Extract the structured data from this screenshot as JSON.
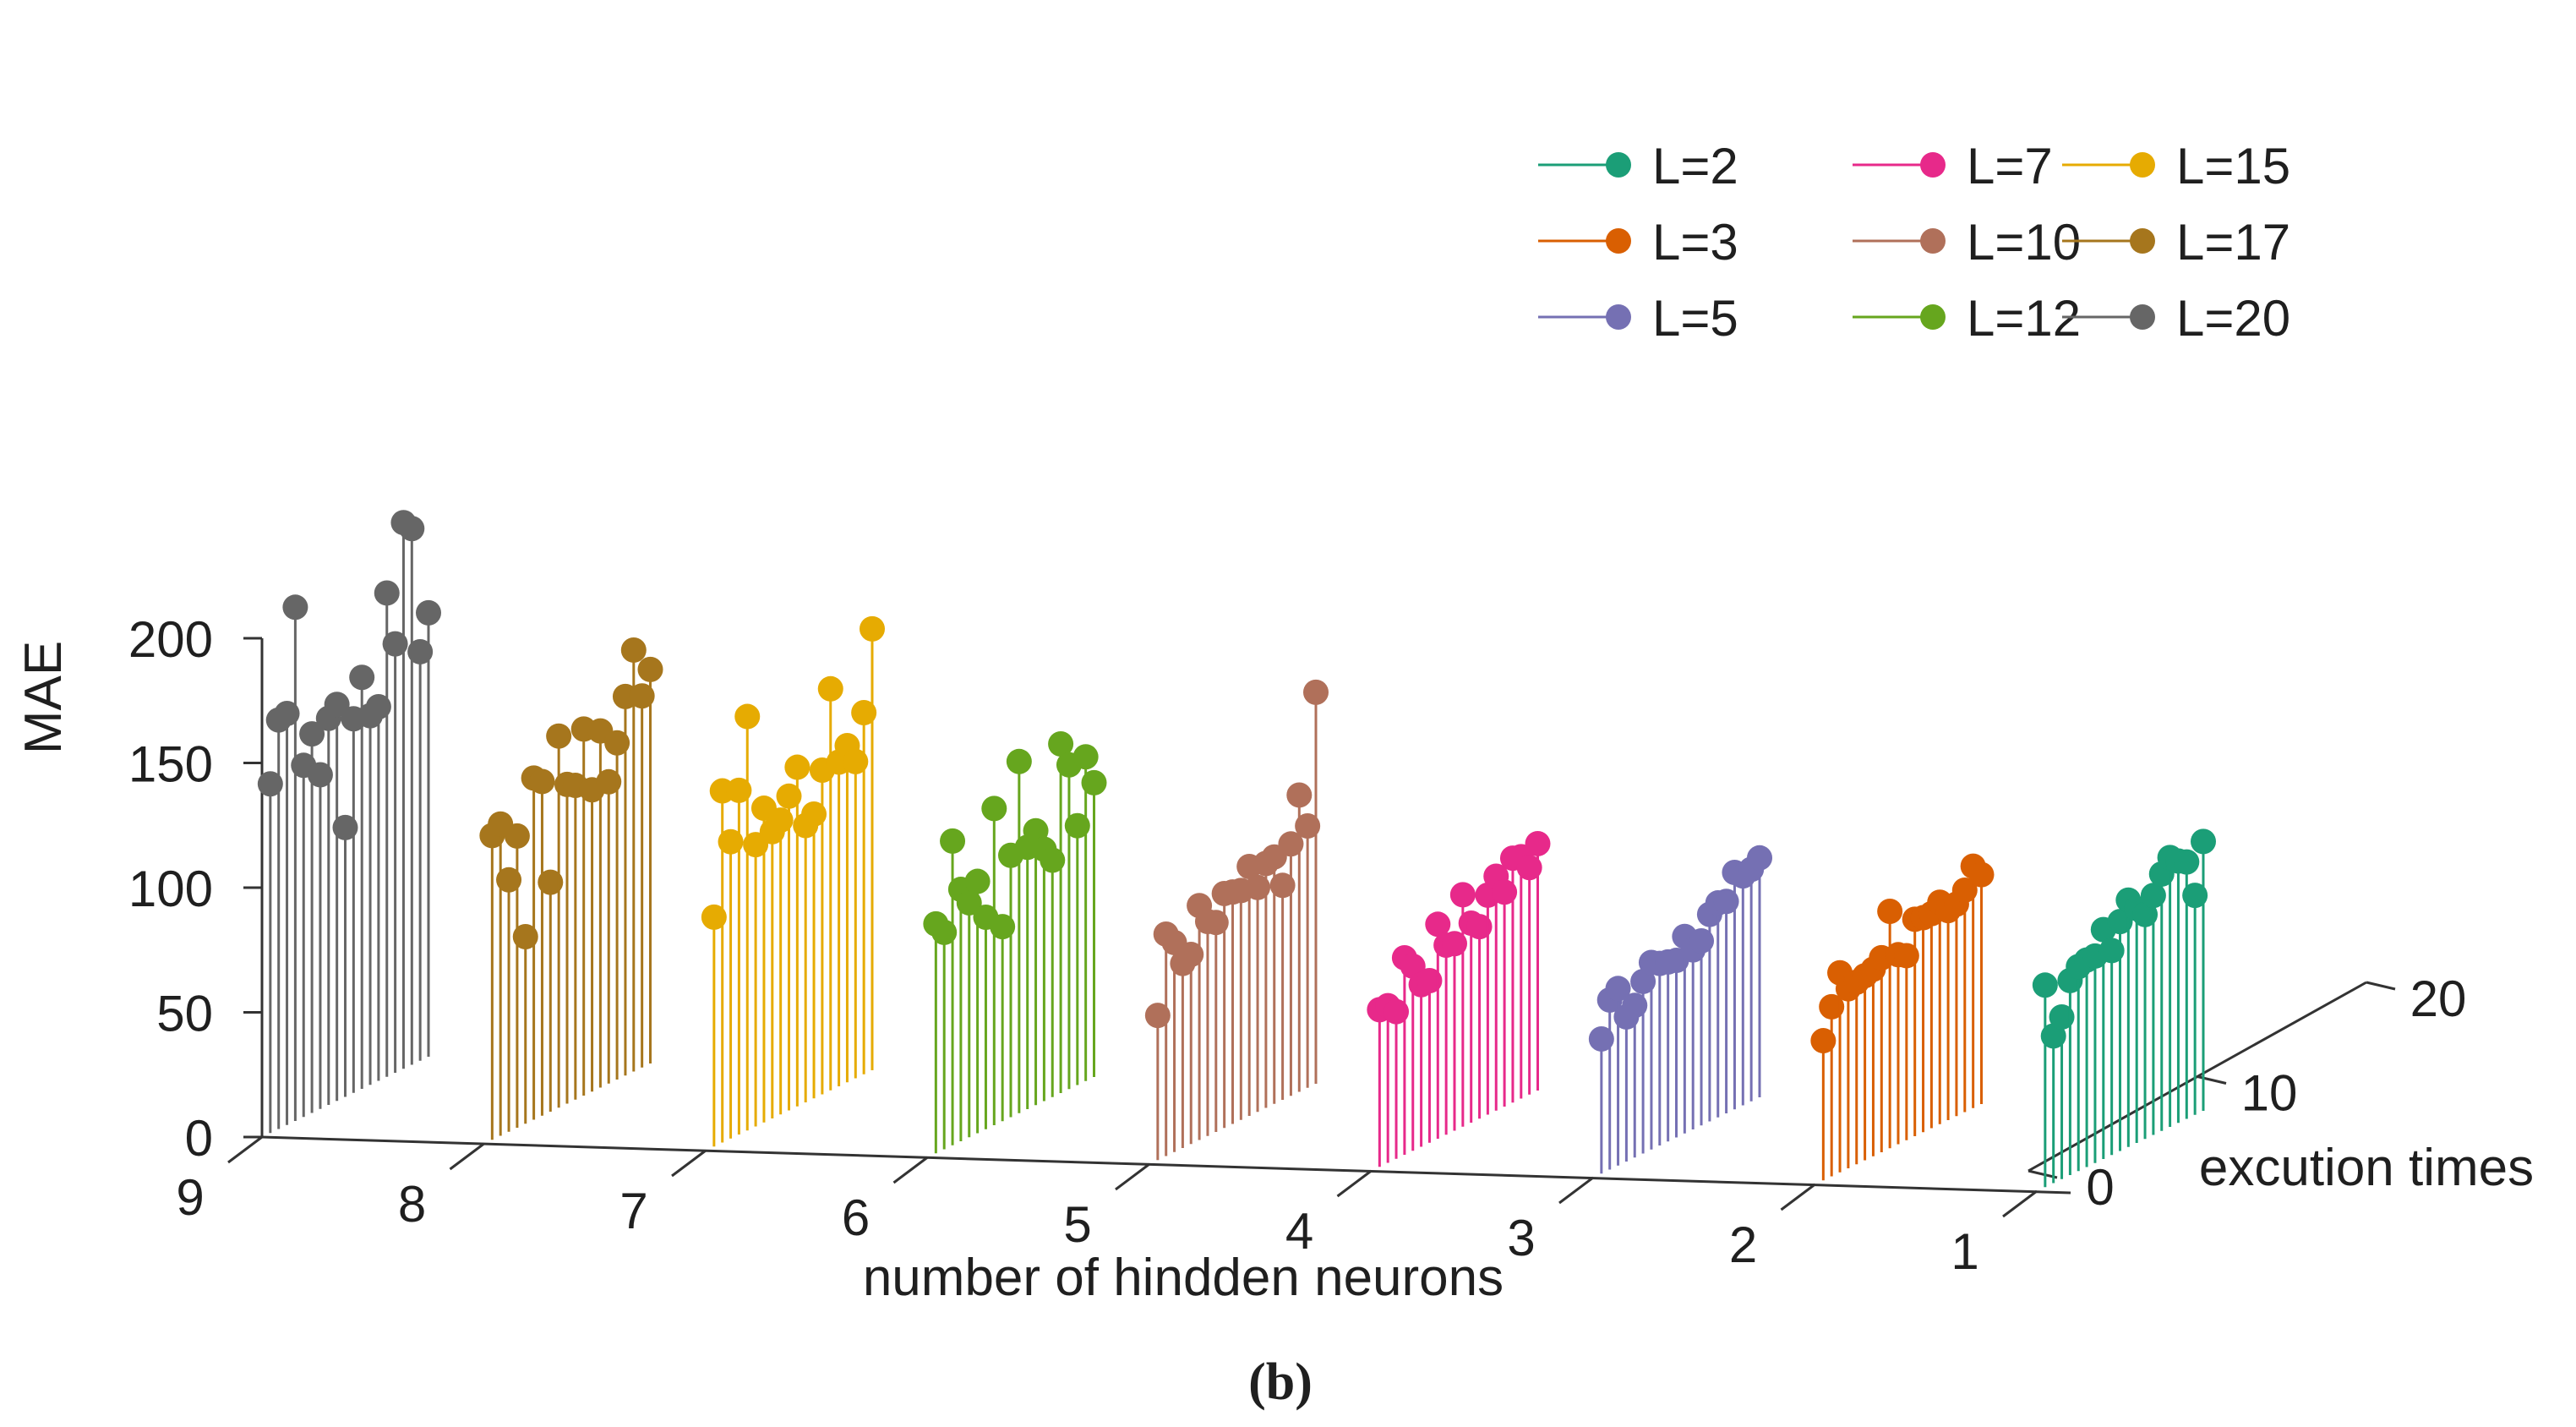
{
  "chart_data": {
    "type": "3d-stem",
    "zlabel": "MAE",
    "xlabel": "number of hindden neurons",
    "ylabel": "excution times",
    "caption": "(b)",
    "z_ticks": [
      "0",
      "50",
      "100",
      "150",
      "200"
    ],
    "x_ticks": [
      "1",
      "2",
      "3",
      "4",
      "5",
      "6",
      "7",
      "8",
      "9"
    ],
    "y_ticks": [
      "0",
      "10",
      "20"
    ],
    "zlim": [
      0,
      220
    ],
    "legend_position": "top-right",
    "series": [
      {
        "name": "L=2",
        "x": 1,
        "color": "#1b9e77",
        "values": [
          81,
          59,
          65,
          78,
          82,
          83,
          83,
          92,
          82,
          92,
          99,
          94,
          90,
          96,
          103,
          108,
          105,
          103,
          88,
          108
        ]
      },
      {
        "name": "L=3",
        "x": 2,
        "color": "#d95f02",
        "values": [
          56,
          68,
          80,
          72,
          73,
          74,
          75,
          78,
          95,
          76,
          74,
          87,
          86,
          86,
          89,
          84,
          85,
          89,
          97,
          92
        ]
      },
      {
        "name": "L=5",
        "x": 3,
        "color": "#7570b3",
        "values": [
          54,
          68,
          71,
          58,
          61,
          69,
          75,
          73,
          72,
          71,
          79,
          72,
          74,
          83,
          86,
          85,
          95,
          92,
          93,
          96
        ]
      },
      {
        "name": "L=7",
        "x": 4,
        "color": "#e7298a",
        "values": [
          63,
          63,
          59,
          79,
          74,
          65,
          65,
          86,
          76,
          75,
          93,
          80,
          77,
          88,
          94,
          86,
          98,
          97,
          91,
          99
        ]
      },
      {
        "name": "L=10",
        "x": 5,
        "color": "#b0705a",
        "values": [
          58,
          89,
          84,
          74,
          76,
          94,
          86,
          84,
          94,
          93,
          92,
          100,
          90,
          98,
          99,
          86,
          101,
          119,
          105,
          157
        ]
      },
      {
        "name": "L=12",
        "x": 6,
        "color": "#66a61e",
        "values": [
          92,
          87,
          122,
          101,
          94,
          101,
          85,
          127,
          78,
          105,
          141,
          105,
          110,
          101,
          95,
          140,
          130,
          104,
          130,
          118
        ]
      },
      {
        "name": "L=15",
        "x": 7,
        "color": "#e6ab02",
        "values": [
          92,
          141,
          119,
          138,
          166,
          113,
          126,
          115,
          118,
          126,
          136,
          111,
          114,
          130,
          161,
          130,
          135,
          127,
          145,
          177
        ]
      },
      {
        "name": "L=17",
        "x": 8,
        "color": "#a6761d",
        "values": [
          122,
          125,
          101,
          117,
          75,
          137,
          134,
          92,
          149,
          128,
          126,
          147,
          121,
          143,
          121,
          135,
          152,
          169,
          149,
          158
        ]
      },
      {
        "name": "L=20",
        "x": 9,
        "color": "#666666",
        "values": [
          140,
          164,
          165,
          206,
          141,
          152,
          134,
          155,
          159,
          108,
          150,
          165,
          148,
          150,
          194,
          172,
          219,
          215,
          164,
          178
        ]
      }
    ]
  }
}
